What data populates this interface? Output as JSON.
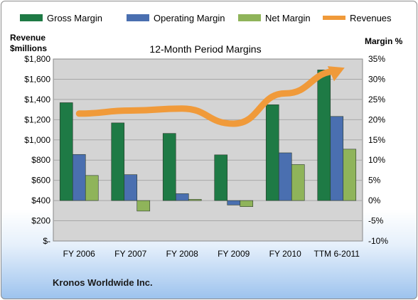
{
  "footer_text": "Kronos Worldwide Inc.",
  "colors": {
    "gross": "#1e7a45",
    "operating": "#4a6fb0",
    "net": "#8fb45a",
    "revenues": "#f09a3a",
    "plot_bg": "#d4d4d4"
  },
  "chart_data": {
    "type": "bar",
    "title": "12-Month Period Margins",
    "categories": [
      "FY 2006",
      "FY 2007",
      "FY 2008",
      "FY 2009",
      "FY 2010",
      "TTM 6-2011"
    ],
    "left_axis": {
      "label_line1": "Revenue",
      "label_line2": "$millions",
      "ylim": [
        0,
        1800
      ],
      "ticks": [
        "$-",
        "$200",
        "$400",
        "$600",
        "$800",
        "$1,000",
        "$1,200",
        "$1,400",
        "$1,600",
        "$1,800"
      ]
    },
    "right_axis": {
      "label": "Margin %",
      "ylim": [
        -10,
        35
      ],
      "ticks": [
        "-10%",
        "-5%",
        "0%",
        "5%",
        "10%",
        "15%",
        "20%",
        "25%",
        "30%",
        "35%"
      ]
    },
    "legend": [
      "Gross Margin",
      "Operating Margin",
      "Net Margin",
      "Revenues"
    ],
    "legend_position": "top",
    "grid": true,
    "series": [
      {
        "name": "Gross Margin",
        "axis": "right",
        "type": "bar",
        "values": [
          24.2,
          19.2,
          16.6,
          11.3,
          23.7,
          32.3
        ]
      },
      {
        "name": "Operating Margin",
        "axis": "right",
        "type": "bar",
        "values": [
          11.4,
          6.4,
          1.7,
          -1.1,
          11.8,
          20.8
        ]
      },
      {
        "name": "Net Margin",
        "axis": "right",
        "type": "bar",
        "values": [
          6.2,
          -2.6,
          0.3,
          -1.5,
          8.9,
          12.7
        ]
      },
      {
        "name": "Revenues",
        "axis": "left",
        "type": "line",
        "values": [
          1260,
          1290,
          1310,
          1160,
          1460,
          1680
        ]
      }
    ]
  }
}
